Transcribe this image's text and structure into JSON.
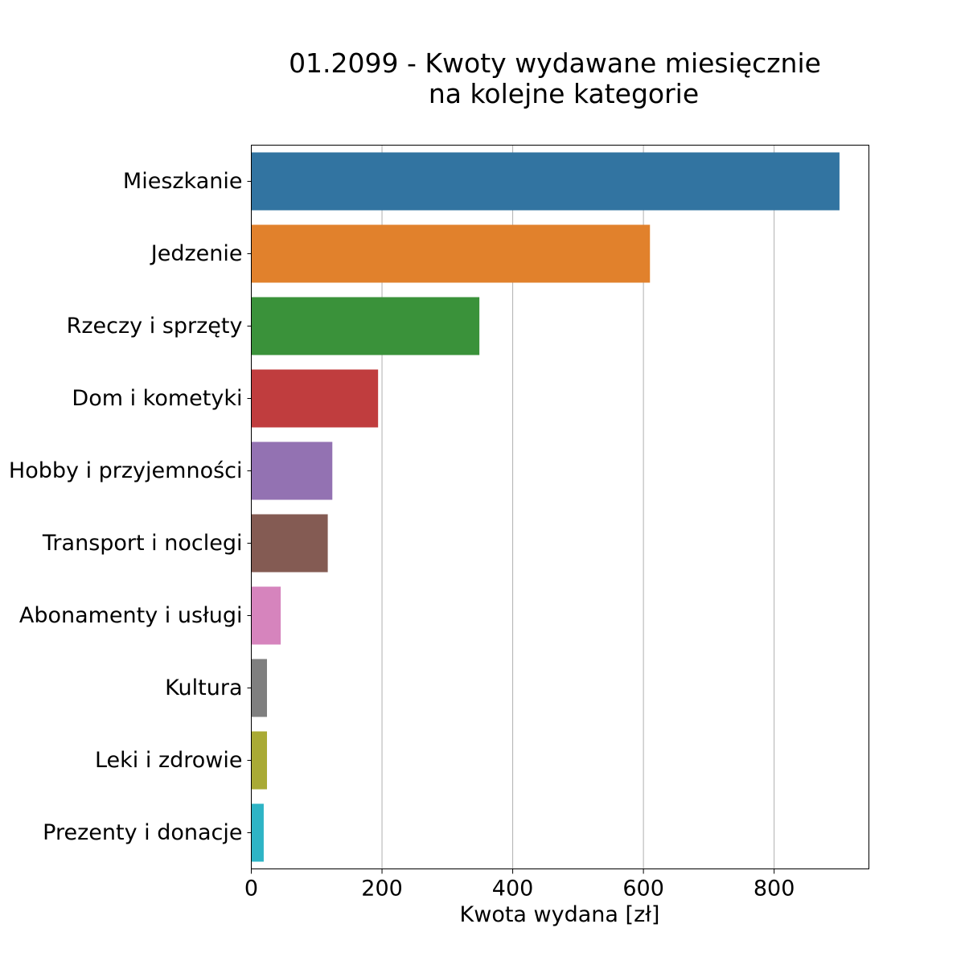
{
  "chart_data": {
    "type": "bar",
    "orientation": "horizontal",
    "title": [
      "01.2099 - Kwoty wydawane miesięcznie",
      "na kolejne kategorie"
    ],
    "xlabel": "Kwota wydana [zł]",
    "ylabel": "",
    "xlim": [
      0,
      945
    ],
    "xticks": [
      0,
      200,
      400,
      600,
      800
    ],
    "xtick_labels": [
      "0",
      "200",
      "400",
      "600",
      "800"
    ],
    "grid": "vertical",
    "categories": [
      "Mieszkanie",
      "Jedzenie",
      "Rzeczy i sprzęty",
      "Dom i kometyki",
      "Hobby i przyjemności",
      "Transport i noclegi",
      "Abonamenty i usługi",
      "Kultura",
      "Leki i zdrowie",
      "Prezenty i donacje"
    ],
    "values": [
      900,
      610,
      349,
      194,
      124,
      117,
      45,
      24,
      24,
      19
    ],
    "colors": [
      "#3274a1",
      "#e1812c",
      "#3a923a",
      "#c03d3e",
      "#9372b2",
      "#845b53",
      "#d684bd",
      "#7f7f7f",
      "#a9aa35",
      "#2eb4c5"
    ]
  }
}
